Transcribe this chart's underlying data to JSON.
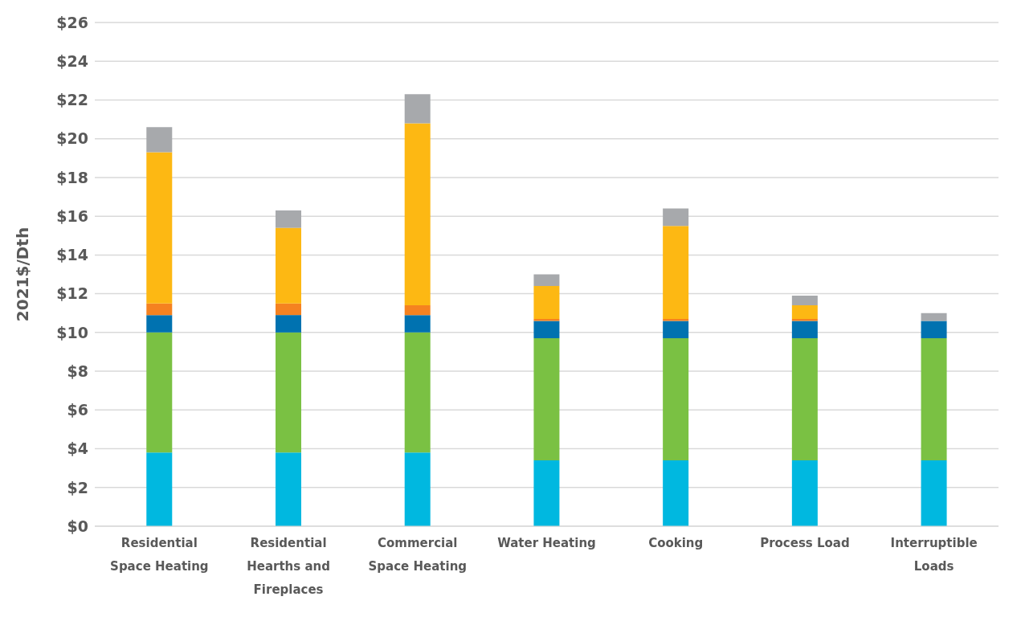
{
  "chart_data": {
    "type": "bar",
    "stacked": true,
    "ylabel": "2021$/Dth",
    "categories": [
      "Residential Space Heating",
      "Residential Hearths and Fireplaces",
      "Commercial Space Heating",
      "Water Heating",
      "Cooking",
      "Process Load",
      "Interruptible Loads"
    ],
    "series": [
      {
        "color": "#00b8e0",
        "values": [
          3.8,
          3.8,
          3.8,
          3.4,
          3.4,
          3.4,
          3.4
        ]
      },
      {
        "color": "#7ac143",
        "values": [
          6.2,
          6.2,
          6.2,
          6.3,
          6.3,
          6.3,
          6.3
        ]
      },
      {
        "color": "#0072b0",
        "values": [
          0.9,
          0.9,
          0.9,
          0.9,
          0.9,
          0.9,
          0.9
        ]
      },
      {
        "color": "#f58220",
        "values": [
          0.6,
          0.6,
          0.5,
          0.1,
          0.1,
          0.1,
          0
        ]
      },
      {
        "color": "#fdb813",
        "values": [
          7.8,
          3.9,
          9.4,
          1.7,
          4.8,
          0.7,
          0
        ]
      },
      {
        "color": "#a7a9ac",
        "values": [
          1.3,
          0.9,
          1.5,
          0.6,
          0.9,
          0.5,
          0.4
        ]
      }
    ],
    "ylim": [
      0,
      26
    ],
    "yticks": [
      {
        "value": 0,
        "label": "$0"
      },
      {
        "value": 2,
        "label": "$2"
      },
      {
        "value": 4,
        "label": "$4"
      },
      {
        "value": 6,
        "label": "$6"
      },
      {
        "value": 8,
        "label": "$8"
      },
      {
        "value": 10,
        "label": "$10"
      },
      {
        "value": 12,
        "label": "$12"
      },
      {
        "value": 14,
        "label": "$14"
      },
      {
        "value": 16,
        "label": "$16"
      },
      {
        "value": 18,
        "label": "$18"
      },
      {
        "value": 20,
        "label": "$20"
      },
      {
        "value": 22,
        "label": "$22"
      },
      {
        "value": 24,
        "label": "$24"
      },
      {
        "value": 26,
        "label": "$26"
      }
    ],
    "grid": "y",
    "legend": false
  }
}
